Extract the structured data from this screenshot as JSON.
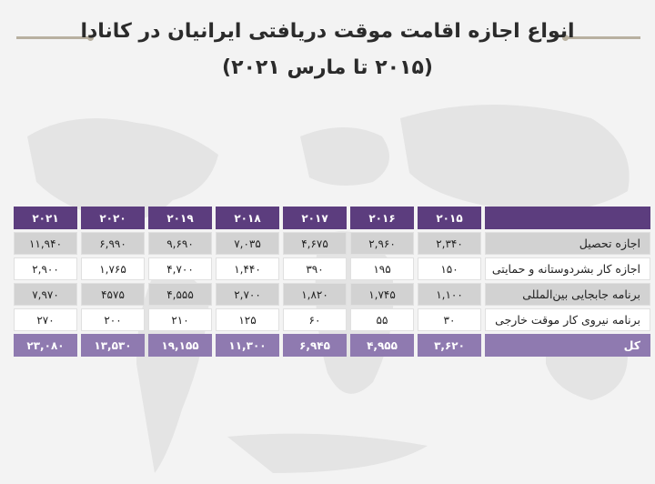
{
  "title": {
    "line1": "انواع اجازه اقامت موقت دریافتی ایرانیان در کانادا",
    "line2": "(۲۰۱۵ تا مارس ۲۰۲۱)"
  },
  "colors": {
    "header": "#5c3d7e",
    "total_row": "#8f7ab0",
    "alt_row": "#d2d2d2"
  },
  "chart_data": {
    "type": "table",
    "years": [
      "۲۰۲۱",
      "۲۰۲۰",
      "۲۰۱۹",
      "۲۰۱۸",
      "۲۰۱۷",
      "۲۰۱۶",
      "۲۰۱۵"
    ],
    "rows": [
      {
        "label": "اجازه تحصیل",
        "values": [
          "۱۱,۹۴۰",
          "۶,۹۹۰",
          "۹,۶۹۰",
          "۷,۰۳۵",
          "۴,۶۷۵",
          "۲,۹۶۰",
          "۲,۳۴۰"
        ]
      },
      {
        "label": "اجازه کار بشردوستانه و حمایتی",
        "values": [
          "۲,۹۰۰",
          "۱,۷۶۵",
          "۴,۷۰۰",
          "۱,۴۴۰",
          "۳۹۰",
          "۱۹۵",
          "۱۵۰"
        ]
      },
      {
        "label": "برنامه جابجایی بین‌المللی",
        "values": [
          "۷,۹۷۰",
          "۴۵۷۵",
          "۴,۵۵۵",
          "۲,۷۰۰",
          "۱,۸۲۰",
          "۱,۷۴۵",
          "۱,۱۰۰"
        ]
      },
      {
        "label": "برنامه نیروی کار موقت خارجی",
        "values": [
          "۲۷۰",
          "۲۰۰",
          "۲۱۰",
          "۱۲۵",
          "۶۰",
          "۵۵",
          "۳۰"
        ]
      },
      {
        "label": "کل",
        "values": [
          "۲۳,۰۸۰",
          "۱۳,۵۳۰",
          "۱۹,۱۵۵",
          "۱۱,۳۰۰",
          "۶,۹۴۵",
          "۴,۹۵۵",
          "۳,۶۲۰"
        ]
      }
    ]
  }
}
